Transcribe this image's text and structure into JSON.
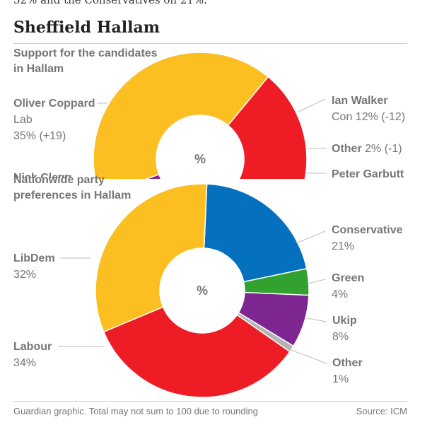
{
  "intro_text": "32% and the Conservatives on 21%.",
  "headline": "Sheffield Hallam",
  "footer": {
    "note": "Guardian graphic. Total may not sum to 100 due to rounding",
    "source": "Source: ICM"
  },
  "chart_data": [
    {
      "type": "pie",
      "title_lines": [
        "Support for the candidates",
        "in Hallam"
      ],
      "center_label": "%",
      "slices": [
        {
          "name": "Oliver Coppard",
          "sub": "Lab",
          "value": 35,
          "display": "35% (+19)",
          "color": "#ee1c24"
        },
        {
          "name": "Ian Walker",
          "sub": "Con",
          "value": 12,
          "display": "Con 12% (-12)",
          "color": "#0571be"
        },
        {
          "name": "Other",
          "value": 2,
          "display": "2% (-1)",
          "color": "#b3b3b3"
        },
        {
          "name": "Peter Garbutt",
          "value": 4,
          "display": "",
          "color": "#33a12f"
        },
        {
          "name": "",
          "value": 3,
          "display": "",
          "color": "#7d2590"
        },
        {
          "name": "Nick Clegg",
          "value": 40,
          "display": "",
          "color": "#fbbf22"
        }
      ]
    },
    {
      "type": "pie",
      "title_lines": [
        "Nationwide party",
        "preferences in Hallam"
      ],
      "center_label": "%",
      "slices": [
        {
          "name": "Conservative",
          "value": 21,
          "display": "21%",
          "color": "#0571be"
        },
        {
          "name": "Green",
          "value": 4,
          "display": "4%",
          "color": "#33a12f"
        },
        {
          "name": "Ukip",
          "value": 8,
          "display": "8%",
          "color": "#7d2590"
        },
        {
          "name": "Other",
          "value": 1,
          "display": "1%",
          "color": "#b3b3b3"
        },
        {
          "name": "Labour",
          "value": 34,
          "display": "34%",
          "color": "#ee1c24"
        },
        {
          "name": "LibDem",
          "value": 32,
          "display": "32%",
          "color": "#fbbf22"
        }
      ]
    }
  ]
}
